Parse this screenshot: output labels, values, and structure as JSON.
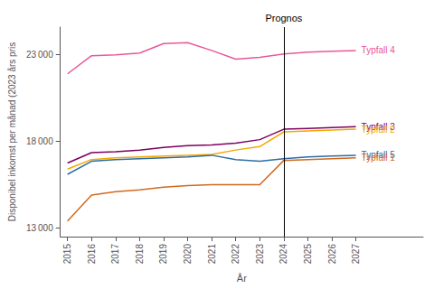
{
  "chart_data": {
    "type": "line",
    "x": [
      2015,
      2016,
      2017,
      2018,
      2019,
      2020,
      2021,
      2022,
      2023,
      2024,
      2025,
      2026,
      2027
    ],
    "series": [
      {
        "name": "Typfall 4",
        "color": "#e8579a",
        "values": [
          21900,
          22950,
          23000,
          23100,
          23650,
          23700,
          23250,
          22750,
          22850,
          23050,
          23150,
          23200,
          23250
        ]
      },
      {
        "name": "Typfall 3",
        "color": "#7b0061",
        "values": [
          16750,
          17350,
          17400,
          17500,
          17650,
          17750,
          17800,
          17900,
          18100,
          18700,
          18750,
          18800,
          18850
        ]
      },
      {
        "name": "Typfall 2",
        "color": "#f5a800",
        "values": [
          16400,
          16950,
          17050,
          17100,
          17150,
          17200,
          17250,
          17500,
          17700,
          18550,
          18600,
          18650,
          18700
        ]
      },
      {
        "name": "Typfall 5",
        "color": "#2e6da4",
        "values": [
          16100,
          16850,
          16950,
          17000,
          17050,
          17100,
          17200,
          16950,
          16850,
          17000,
          17100,
          17150,
          17200
        ]
      },
      {
        "name": "Typfall 1",
        "color": "#d2691e",
        "values": [
          13400,
          14900,
          15100,
          15200,
          15350,
          15450,
          15500,
          15500,
          15500,
          16900,
          16950,
          17000,
          17050
        ]
      }
    ],
    "xlabel": "År",
    "ylabel": "Disponibel inkomst per månad (2023 års pris",
    "xlim": [
      2014.7,
      2029.8
    ],
    "xticks": [
      2015,
      2016,
      2017,
      2018,
      2019,
      2020,
      2021,
      2022,
      2023,
      2024,
      2025,
      2026,
      2027
    ],
    "ylim": [
      12500,
      24600
    ],
    "yticks": [
      {
        "value": 13000,
        "label": "13 000"
      },
      {
        "value": 18000,
        "label": "18 000"
      },
      {
        "value": 23000,
        "label": "23 000"
      }
    ],
    "annotations": [
      {
        "text": "Prognos",
        "x": 2024,
        "color": "#000000"
      }
    ],
    "grid": false
  }
}
